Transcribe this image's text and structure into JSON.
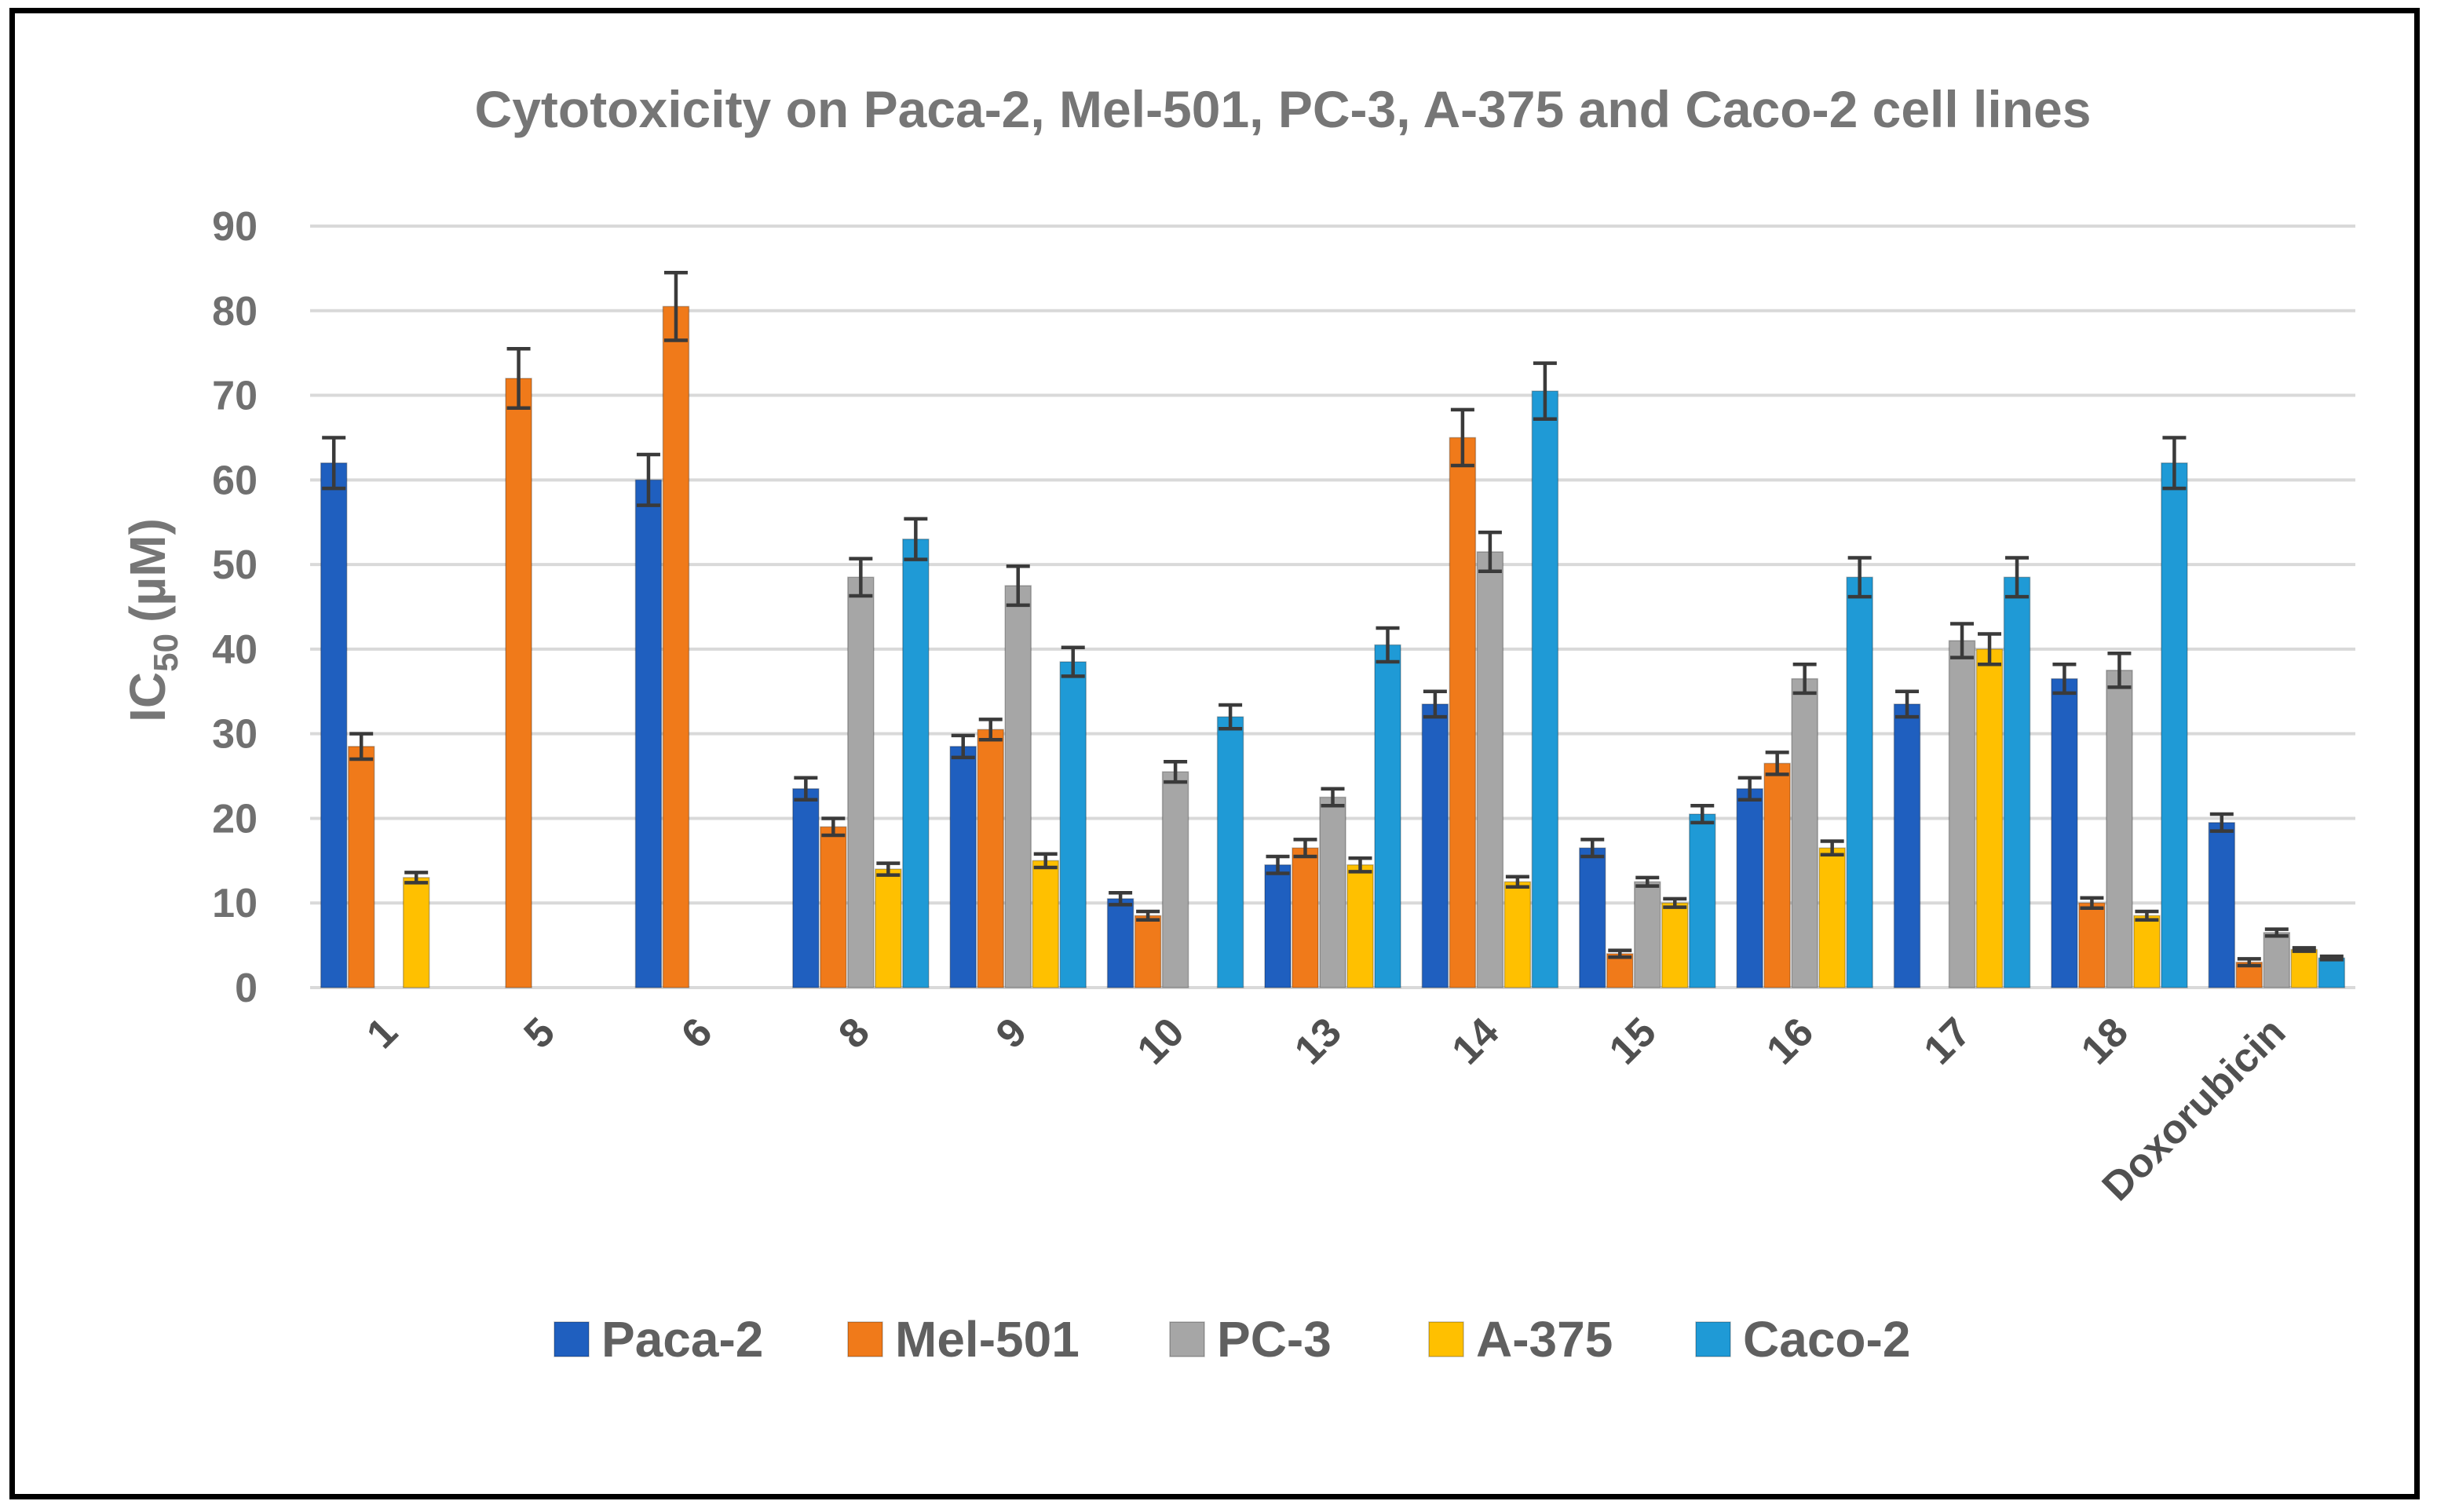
{
  "chart_data": {
    "type": "bar",
    "title": "Cytotoxicity on Paca-2, Mel-501, PC-3, A-375 and Caco-2 cell lines",
    "ylabel_main": "IC",
    "ylabel_sub": "50",
    "ylabel_unit": "(µM)",
    "xlabel": "",
    "ylim": [
      0,
      90
    ],
    "yticks": [
      "0",
      "10",
      "20",
      "30",
      "40",
      "50",
      "60",
      "70",
      "80",
      "90"
    ],
    "grid": true,
    "legend_position": "bottom",
    "categories": [
      "1",
      "5",
      "6",
      "8",
      "9",
      "10",
      "13",
      "14",
      "15",
      "16",
      "17",
      "18",
      "Doxorubicin"
    ],
    "series": [
      {
        "name": "Paca-2",
        "color": "#1f5fbf",
        "values": [
          62,
          null,
          60,
          23.5,
          28.5,
          10.5,
          14.5,
          33.5,
          16.5,
          23.5,
          33.5,
          36.5,
          19.5
        ],
        "errors": [
          3,
          null,
          3,
          1.3,
          1.3,
          0.7,
          1,
          1.5,
          1,
          1.3,
          1.5,
          1.7,
          1
        ]
      },
      {
        "name": "Mel-501",
        "color": "#f07a1a",
        "values": [
          28.5,
          72,
          80.5,
          19,
          30.5,
          8.5,
          16.5,
          65,
          4,
          26.5,
          null,
          10,
          3
        ],
        "errors": [
          1.5,
          3.5,
          4,
          1,
          1.2,
          0.5,
          1,
          3.3,
          0.4,
          1.3,
          null,
          0.6,
          0.4
        ]
      },
      {
        "name": "PC-3",
        "color": "#a6a6a6",
        "values": [
          null,
          null,
          null,
          48.5,
          47.5,
          25.5,
          22.5,
          51.5,
          12.5,
          36.5,
          41,
          37.5,
          6.5
        ],
        "errors": [
          null,
          null,
          null,
          2.2,
          2.3,
          1.2,
          1,
          2.3,
          0.5,
          1.7,
          2,
          2,
          0.4
        ]
      },
      {
        "name": "A-375",
        "color": "#ffc000",
        "values": [
          13,
          null,
          null,
          14,
          15,
          null,
          14.5,
          12.5,
          10,
          16.5,
          40,
          8.5,
          4.5
        ],
        "errors": [
          0.6,
          null,
          null,
          0.7,
          0.8,
          null,
          0.8,
          0.6,
          0.5,
          0.8,
          1.8,
          0.5,
          0.2
        ]
      },
      {
        "name": "Caco-2",
        "color": "#1f9ad6",
        "values": [
          null,
          null,
          null,
          53,
          38.5,
          32,
          40.5,
          70.5,
          20.5,
          48.5,
          48.5,
          62,
          3.5
        ],
        "errors": [
          null,
          null,
          null,
          2.4,
          1.7,
          1.4,
          2,
          3.3,
          1,
          2.3,
          2.3,
          3,
          0.2
        ]
      }
    ]
  }
}
